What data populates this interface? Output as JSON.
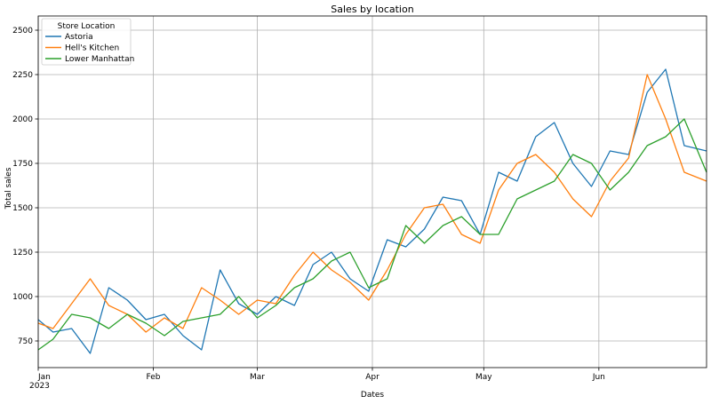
{
  "chart_data": {
    "type": "line",
    "title": "Sales by location",
    "xlabel": "Dates",
    "ylabel": "Total sales",
    "x_range": [
      "2023-01-01",
      "2023-06-30"
    ],
    "x_ticks": [
      {
        "date": "2023-01-01",
        "label": "Jan",
        "sublabel": "2023"
      },
      {
        "date": "2023-02-01",
        "label": "Feb"
      },
      {
        "date": "2023-03-01",
        "label": "Mar"
      },
      {
        "date": "2023-04-01",
        "label": "Apr"
      },
      {
        "date": "2023-05-01",
        "label": "May"
      },
      {
        "date": "2023-06-01",
        "label": "Jun"
      }
    ],
    "ylim": [
      600,
      2580
    ],
    "y_ticks": [
      750,
      1000,
      1250,
      1500,
      1750,
      2000,
      2250,
      2500
    ],
    "y_tick_labels": [
      "750",
      "1000",
      "1250",
      "1500",
      "1750",
      "2000",
      "2250",
      "2500"
    ],
    "grid": true,
    "legend": {
      "title": "Store Location",
      "placement": "top-left"
    },
    "series": [
      {
        "name": "Astoria",
        "color": "#1f77b4",
        "points": [
          [
            "2023-01-01",
            870
          ],
          [
            "2023-01-05",
            800
          ],
          [
            "2023-01-10",
            820
          ],
          [
            "2023-01-15",
            680
          ],
          [
            "2023-01-20",
            1050
          ],
          [
            "2023-01-25",
            980
          ],
          [
            "2023-01-30",
            870
          ],
          [
            "2023-02-04",
            900
          ],
          [
            "2023-02-09",
            780
          ],
          [
            "2023-02-14",
            700
          ],
          [
            "2023-02-19",
            1150
          ],
          [
            "2023-02-24",
            960
          ],
          [
            "2023-03-01",
            900
          ],
          [
            "2023-03-06",
            1000
          ],
          [
            "2023-03-11",
            950
          ],
          [
            "2023-03-16",
            1180
          ],
          [
            "2023-03-21",
            1250
          ],
          [
            "2023-03-26",
            1100
          ],
          [
            "2023-03-31",
            1030
          ],
          [
            "2023-04-05",
            1320
          ],
          [
            "2023-04-10",
            1280
          ],
          [
            "2023-04-15",
            1380
          ],
          [
            "2023-04-20",
            1560
          ],
          [
            "2023-04-25",
            1540
          ],
          [
            "2023-04-30",
            1350
          ],
          [
            "2023-05-05",
            1700
          ],
          [
            "2023-05-10",
            1650
          ],
          [
            "2023-05-15",
            1900
          ],
          [
            "2023-05-20",
            1980
          ],
          [
            "2023-05-25",
            1750
          ],
          [
            "2023-05-30",
            1620
          ],
          [
            "2023-06-04",
            1820
          ],
          [
            "2023-06-09",
            1800
          ],
          [
            "2023-06-14",
            2150
          ],
          [
            "2023-06-19",
            2280
          ],
          [
            "2023-06-24",
            1850
          ],
          [
            "2023-06-30",
            1820
          ]
        ]
      },
      {
        "name": "Hell's Kitchen",
        "color": "#ff7f0e",
        "points": [
          [
            "2023-01-01",
            850
          ],
          [
            "2023-01-05",
            820
          ],
          [
            "2023-01-10",
            960
          ],
          [
            "2023-01-15",
            1100
          ],
          [
            "2023-01-20",
            950
          ],
          [
            "2023-01-25",
            900
          ],
          [
            "2023-01-30",
            800
          ],
          [
            "2023-02-04",
            880
          ],
          [
            "2023-02-09",
            820
          ],
          [
            "2023-02-14",
            1050
          ],
          [
            "2023-02-19",
            980
          ],
          [
            "2023-02-24",
            900
          ],
          [
            "2023-03-01",
            980
          ],
          [
            "2023-03-06",
            960
          ],
          [
            "2023-03-11",
            1120
          ],
          [
            "2023-03-16",
            1250
          ],
          [
            "2023-03-21",
            1150
          ],
          [
            "2023-03-26",
            1080
          ],
          [
            "2023-03-31",
            980
          ],
          [
            "2023-04-05",
            1150
          ],
          [
            "2023-04-10",
            1350
          ],
          [
            "2023-04-15",
            1500
          ],
          [
            "2023-04-20",
            1520
          ],
          [
            "2023-04-25",
            1350
          ],
          [
            "2023-04-30",
            1300
          ],
          [
            "2023-05-05",
            1600
          ],
          [
            "2023-05-10",
            1750
          ],
          [
            "2023-05-15",
            1800
          ],
          [
            "2023-05-20",
            1700
          ],
          [
            "2023-05-25",
            1550
          ],
          [
            "2023-05-30",
            1450
          ],
          [
            "2023-06-04",
            1650
          ],
          [
            "2023-06-09",
            1780
          ],
          [
            "2023-06-14",
            2250
          ],
          [
            "2023-06-19",
            2000
          ],
          [
            "2023-06-24",
            1700
          ],
          [
            "2023-06-30",
            1650
          ]
        ]
      },
      {
        "name": "Lower Manhattan",
        "color": "#2ca02c",
        "points": [
          [
            "2023-01-01",
            700
          ],
          [
            "2023-01-05",
            760
          ],
          [
            "2023-01-10",
            900
          ],
          [
            "2023-01-15",
            880
          ],
          [
            "2023-01-20",
            820
          ],
          [
            "2023-01-25",
            900
          ],
          [
            "2023-01-30",
            850
          ],
          [
            "2023-02-04",
            780
          ],
          [
            "2023-02-09",
            860
          ],
          [
            "2023-02-14",
            880
          ],
          [
            "2023-02-19",
            900
          ],
          [
            "2023-02-24",
            1000
          ],
          [
            "2023-03-01",
            880
          ],
          [
            "2023-03-06",
            950
          ],
          [
            "2023-03-11",
            1050
          ],
          [
            "2023-03-16",
            1100
          ],
          [
            "2023-03-21",
            1200
          ],
          [
            "2023-03-26",
            1250
          ],
          [
            "2023-03-31",
            1050
          ],
          [
            "2023-04-05",
            1100
          ],
          [
            "2023-04-10",
            1400
          ],
          [
            "2023-04-15",
            1300
          ],
          [
            "2023-04-20",
            1400
          ],
          [
            "2023-04-25",
            1450
          ],
          [
            "2023-04-30",
            1350
          ],
          [
            "2023-05-05",
            1350
          ],
          [
            "2023-05-10",
            1550
          ],
          [
            "2023-05-15",
            1600
          ],
          [
            "2023-05-20",
            1650
          ],
          [
            "2023-05-25",
            1800
          ],
          [
            "2023-05-30",
            1750
          ],
          [
            "2023-06-04",
            1600
          ],
          [
            "2023-06-09",
            1700
          ],
          [
            "2023-06-14",
            1850
          ],
          [
            "2023-06-19",
            1900
          ],
          [
            "2023-06-24",
            2000
          ],
          [
            "2023-06-30",
            1700
          ]
        ]
      }
    ]
  }
}
